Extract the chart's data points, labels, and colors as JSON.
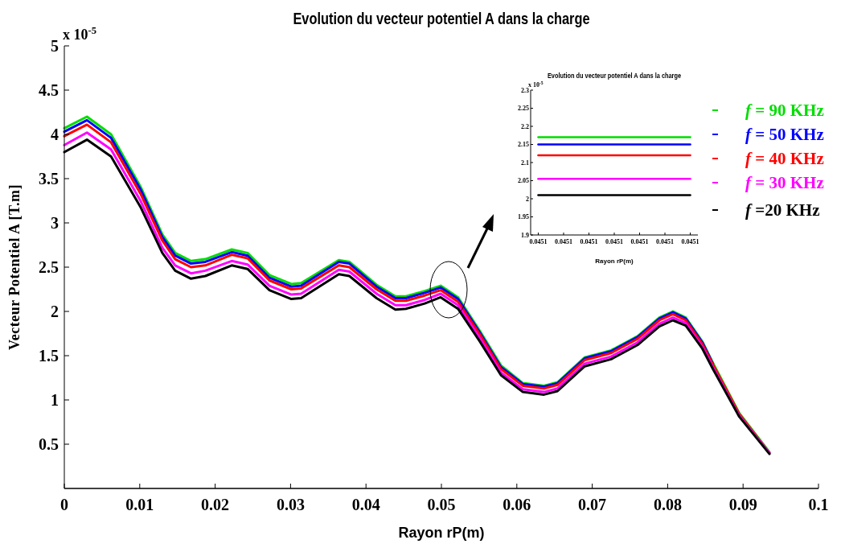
{
  "chart_data": [
    {
      "type": "line",
      "title": "Evolution du vecteur potentiel  A dans la charge",
      "xlabel": "Rayon rP(m)",
      "ylabel": "Vecteur Potentiel A [T.m]",
      "annotations": [
        "x 10$^{-5}$"
      ],
      "x": [
        0,
        0.003,
        0.0062,
        0.0101,
        0.013,
        0.0147,
        0.0168,
        0.0187,
        0.0222,
        0.0243,
        0.0272,
        0.0301,
        0.0314,
        0.0364,
        0.0378,
        0.0414,
        0.0439,
        0.0453,
        0.0478,
        0.0499,
        0.0522,
        0.0551,
        0.0579,
        0.0608,
        0.0636,
        0.0654,
        0.069,
        0.0725,
        0.076,
        0.0789,
        0.0807,
        0.0824,
        0.0846,
        0.086,
        0.0895,
        0.0935
      ],
      "series": [
        {
          "name": "f = 90 KHz",
          "color": "#00dd00",
          "values": [
            4.07,
            4.2,
            4.0,
            3.41,
            2.87,
            2.66,
            2.57,
            2.59,
            2.7,
            2.66,
            2.41,
            2.31,
            2.32,
            2.58,
            2.56,
            2.3,
            2.17,
            2.17,
            2.23,
            2.29,
            2.16,
            1.78,
            1.39,
            1.19,
            1.16,
            1.2,
            1.48,
            1.56,
            1.72,
            1.93,
            2.0,
            1.93,
            1.66,
            1.42,
            0.85,
            0.41
          ]
        },
        {
          "name": "f = 50 KHz",
          "color": "#0000ff",
          "values": [
            4.03,
            4.16,
            3.96,
            3.38,
            2.84,
            2.63,
            2.54,
            2.56,
            2.67,
            2.63,
            2.38,
            2.28,
            2.29,
            2.56,
            2.54,
            2.28,
            2.15,
            2.15,
            2.21,
            2.27,
            2.14,
            1.76,
            1.37,
            1.18,
            1.15,
            1.19,
            1.47,
            1.55,
            1.71,
            1.92,
            1.99,
            1.92,
            1.65,
            1.41,
            null,
            null
          ]
        },
        {
          "name": "f = 40 KHz",
          "color": "#ff0000",
          "values": [
            3.98,
            4.11,
            3.91,
            3.33,
            2.8,
            2.59,
            2.5,
            2.52,
            2.64,
            2.6,
            2.35,
            2.25,
            2.26,
            2.52,
            2.5,
            2.25,
            2.12,
            2.12,
            2.18,
            2.24,
            2.11,
            1.74,
            1.35,
            1.16,
            1.13,
            1.17,
            1.45,
            1.53,
            1.69,
            1.9,
            1.97,
            1.9,
            1.63,
            1.4,
            0.84,
            0.4
          ]
        },
        {
          "name": "f = 30 KHz",
          "color": "#ff00ff",
          "values": [
            3.88,
            4.02,
            3.83,
            3.25,
            2.72,
            2.52,
            2.43,
            2.46,
            2.57,
            2.53,
            2.29,
            2.19,
            2.2,
            2.47,
            2.45,
            2.2,
            2.07,
            2.07,
            2.13,
            2.2,
            2.07,
            1.7,
            1.31,
            1.12,
            1.09,
            1.13,
            1.41,
            1.49,
            1.65,
            1.86,
            1.93,
            1.87,
            1.6,
            1.37,
            0.82,
            0.4
          ]
        },
        {
          "name": "f =20 KHz",
          "color": "#000000",
          "values": [
            3.8,
            3.94,
            3.75,
            3.18,
            2.66,
            2.46,
            2.37,
            2.4,
            2.52,
            2.48,
            2.24,
            2.14,
            2.15,
            2.42,
            2.4,
            2.15,
            2.02,
            2.03,
            2.09,
            2.16,
            2.03,
            1.66,
            1.28,
            1.09,
            1.06,
            1.1,
            1.38,
            1.46,
            1.62,
            1.83,
            1.9,
            1.84,
            1.58,
            1.35,
            0.81,
            0.39
          ]
        }
      ],
      "xlim": [
        0,
        0.1
      ],
      "xticks": [
        0,
        0.01,
        0.02,
        0.03,
        0.04,
        0.05,
        0.06,
        0.07,
        0.08,
        0.09,
        0.1
      ],
      "ylim": [
        0,
        5
      ],
      "yticks": [
        0.5,
        1,
        1.5,
        2,
        2.5,
        3,
        3.5,
        4,
        4.5,
        5
      ],
      "grid": false,
      "legend": "top right",
      "marker": "none",
      "line_style": "solid"
    },
    {
      "type": "line",
      "title": "Evolution du vecteur potentiel  A dans la charge",
      "xlabel": "Rayon rP(m)",
      "annotations": [
        "x 10$^{-5}$"
      ],
      "categories": [
        "0.0451",
        "0.0451",
        "0.0451",
        "0.0451",
        "0.0451",
        "0.0451",
        "0.0451"
      ],
      "series": [
        {
          "color": "#00dd00",
          "values": [
            2.17,
            2.17,
            2.17,
            2.17,
            2.17,
            2.17,
            2.17
          ]
        },
        {
          "color": "#0000ff",
          "values": [
            2.15,
            2.15,
            2.15,
            2.15,
            2.15,
            2.15,
            2.15
          ]
        },
        {
          "color": "#ff0000",
          "values": [
            2.12,
            2.12,
            2.12,
            2.12,
            2.12,
            2.12,
            2.12
          ]
        },
        {
          "color": "#ff00ff",
          "values": [
            2.055,
            2.055,
            2.055,
            2.055,
            2.055,
            2.055,
            2.055
          ]
        },
        {
          "color": "#000000",
          "values": [
            2.01,
            2.01,
            2.01,
            2.01,
            2.01,
            2.01,
            2.01
          ]
        }
      ],
      "ylim": [
        1.9,
        2.3
      ],
      "yticks": [
        1.9,
        1.95,
        2,
        2.05,
        2.1,
        2.15,
        2.2,
        2.25,
        2.3
      ],
      "grid": false,
      "marker": "none",
      "line_style": "solid"
    }
  ]
}
